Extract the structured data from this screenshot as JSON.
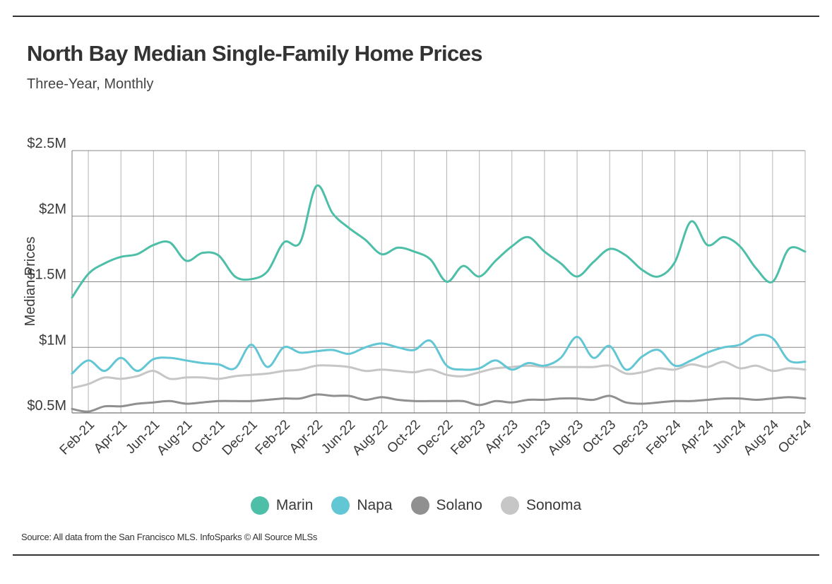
{
  "title": "North Bay Median Single-Family Home Prices",
  "subtitle": "Three-Year, Monthly",
  "source": "Source:  All data from the San Francisco MLS. InfoSparks © All Source MLSs",
  "chart_data": {
    "type": "line",
    "title": "North Bay Median Single-Family Home Prices",
    "subtitle": "Three-Year, Monthly",
    "xlabel": "",
    "ylabel": "Median Prices",
    "ylim": [
      0.5,
      2.5
    ],
    "y_ticks": [
      0.5,
      1,
      1.5,
      2,
      2.5
    ],
    "y_tick_labels": [
      "$0.5M",
      "$1M",
      "$1.5M",
      "$2M",
      "$2.5M"
    ],
    "grid": true,
    "legend_position": "bottom",
    "x": [
      "Jan-21",
      "Feb-21",
      "Mar-21",
      "Apr-21",
      "May-21",
      "Jun-21",
      "Jul-21",
      "Aug-21",
      "Sep-21",
      "Oct-21",
      "Nov-21",
      "Dec-21",
      "Jan-22",
      "Feb-22",
      "Mar-22",
      "Apr-22",
      "May-22",
      "Jun-22",
      "Jul-22",
      "Aug-22",
      "Sep-22",
      "Oct-22",
      "Nov-22",
      "Dec-22",
      "Jan-23",
      "Feb-23",
      "Mar-23",
      "Apr-23",
      "May-23",
      "Jun-23",
      "Jul-23",
      "Aug-23",
      "Sep-23",
      "Oct-23",
      "Nov-23",
      "Dec-23",
      "Jan-24",
      "Feb-24",
      "Mar-24",
      "Apr-24",
      "May-24",
      "Jun-24",
      "Jul-24",
      "Aug-24",
      "Sep-24",
      "Oct-24"
    ],
    "x_tick_labels": [
      "Feb-21",
      "Apr-21",
      "Jun-21",
      "Aug-21",
      "Oct-21",
      "Dec-21",
      "Feb-22",
      "Apr-22",
      "Jun-22",
      "Aug-22",
      "Oct-22",
      "Dec-22",
      "Feb-23",
      "Apr-23",
      "Jun-23",
      "Aug-23",
      "Oct-23",
      "Dec-23",
      "Feb-24",
      "Apr-24",
      "Jun-24",
      "Aug-24",
      "Oct-24"
    ],
    "series": [
      {
        "name": "Marin",
        "color": "#4dbfa8",
        "values": [
          1.38,
          1.56,
          1.64,
          1.69,
          1.71,
          1.78,
          1.8,
          1.66,
          1.72,
          1.7,
          1.54,
          1.52,
          1.58,
          1.8,
          1.8,
          2.23,
          2.02,
          1.91,
          1.82,
          1.71,
          1.76,
          1.73,
          1.67,
          1.5,
          1.62,
          1.54,
          1.66,
          1.77,
          1.84,
          1.73,
          1.64,
          1.54,
          1.65,
          1.75,
          1.7,
          1.59,
          1.54,
          1.65,
          1.96,
          1.78,
          1.84,
          1.77,
          1.6,
          1.5,
          1.75,
          1.73
        ]
      },
      {
        "name": "Napa",
        "color": "#62c6d4",
        "values": [
          0.8,
          0.9,
          0.82,
          0.92,
          0.82,
          0.91,
          0.92,
          0.9,
          0.88,
          0.87,
          0.84,
          1.02,
          0.85,
          1.0,
          0.96,
          0.97,
          0.98,
          0.95,
          1.0,
          1.03,
          1.0,
          0.98,
          1.05,
          0.86,
          0.83,
          0.84,
          0.9,
          0.83,
          0.88,
          0.86,
          0.92,
          1.08,
          0.92,
          1.01,
          0.83,
          0.93,
          0.98,
          0.86,
          0.9,
          0.96,
          1.0,
          1.02,
          1.09,
          1.07,
          0.9,
          0.89
        ]
      },
      {
        "name": "Solano",
        "color": "#909090",
        "values": [
          0.53,
          0.51,
          0.55,
          0.55,
          0.57,
          0.58,
          0.59,
          0.57,
          0.58,
          0.59,
          0.59,
          0.59,
          0.6,
          0.61,
          0.61,
          0.64,
          0.63,
          0.63,
          0.6,
          0.62,
          0.6,
          0.59,
          0.59,
          0.59,
          0.59,
          0.56,
          0.59,
          0.58,
          0.6,
          0.6,
          0.61,
          0.61,
          0.6,
          0.63,
          0.58,
          0.57,
          0.58,
          0.59,
          0.59,
          0.6,
          0.61,
          0.61,
          0.6,
          0.61,
          0.62,
          0.61
        ]
      },
      {
        "name": "Sonoma",
        "color": "#c6c6c6",
        "values": [
          0.69,
          0.72,
          0.77,
          0.76,
          0.78,
          0.82,
          0.76,
          0.77,
          0.77,
          0.76,
          0.78,
          0.79,
          0.8,
          0.82,
          0.83,
          0.86,
          0.86,
          0.85,
          0.82,
          0.83,
          0.82,
          0.81,
          0.83,
          0.79,
          0.78,
          0.81,
          0.84,
          0.85,
          0.86,
          0.85,
          0.85,
          0.85,
          0.85,
          0.86,
          0.8,
          0.81,
          0.84,
          0.83,
          0.87,
          0.85,
          0.89,
          0.84,
          0.86,
          0.82,
          0.84,
          0.83
        ]
      }
    ]
  }
}
